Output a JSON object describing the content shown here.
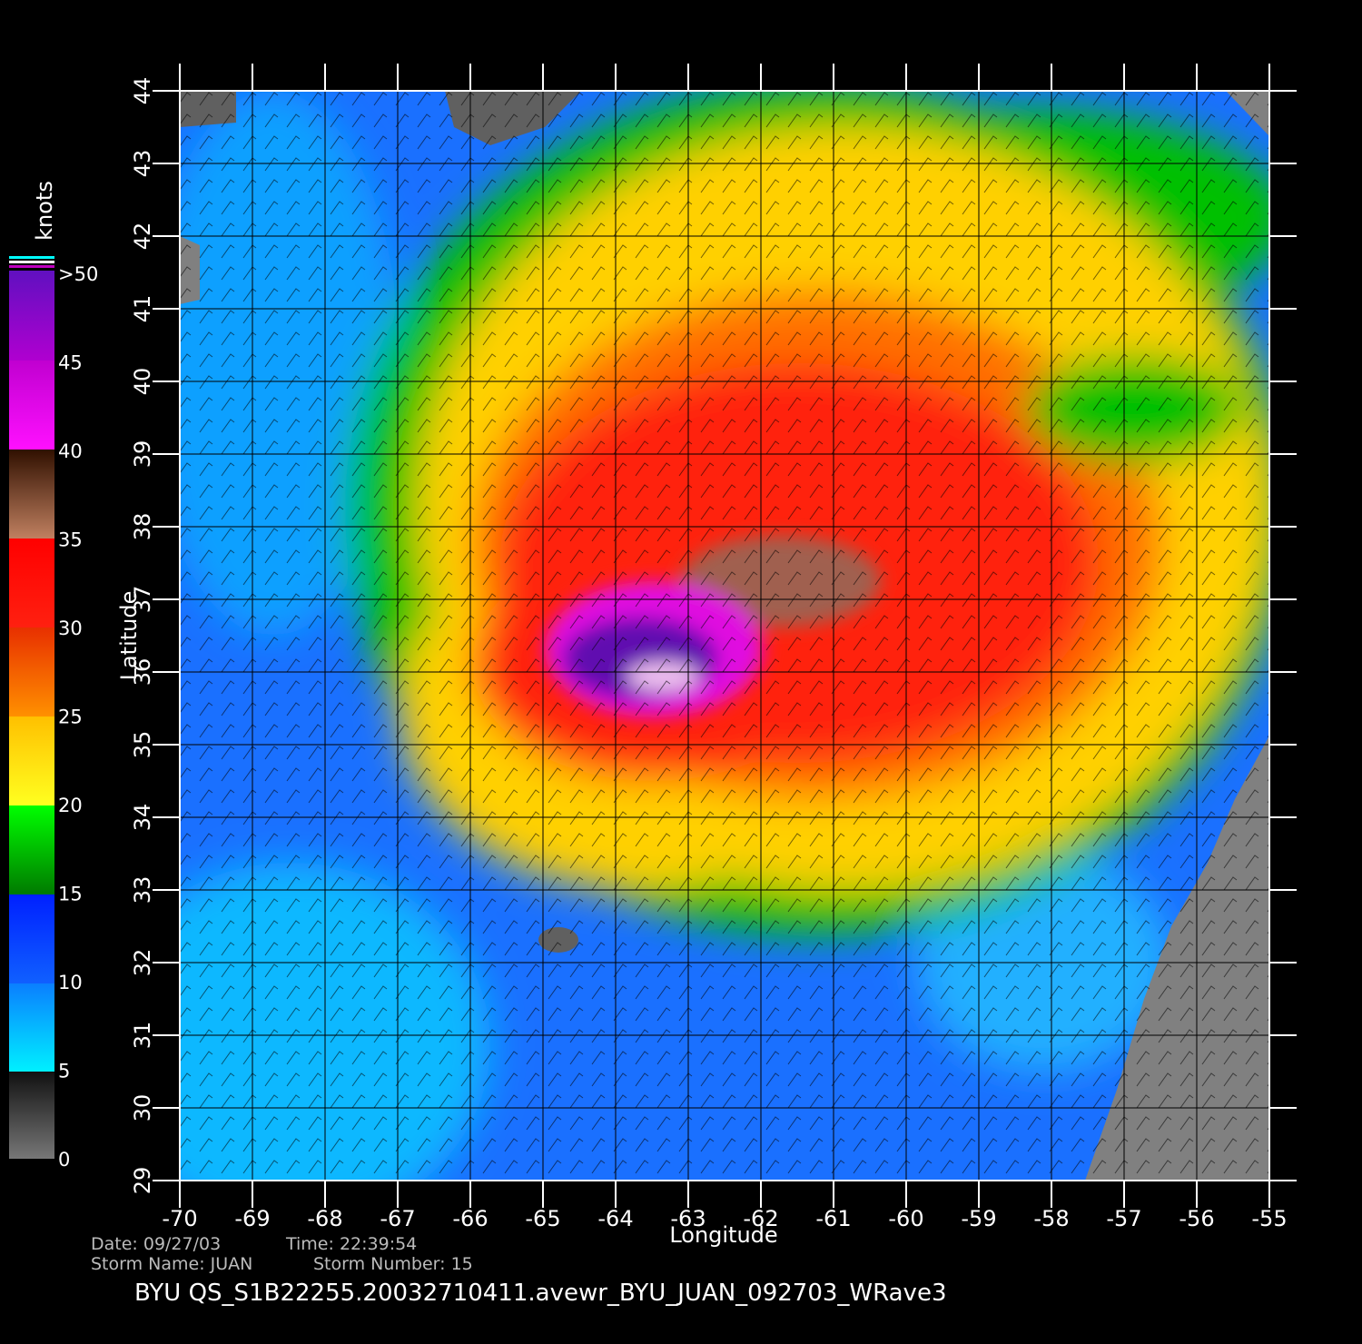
{
  "x_axis": {
    "label": "Longitude",
    "ticks": [
      -70,
      -69,
      -68,
      -67,
      -66,
      -65,
      -64,
      -63,
      -62,
      -61,
      -60,
      -59,
      -58,
      -57,
      -56,
      -55
    ]
  },
  "y_axis": {
    "label": "Latitude",
    "ticks": [
      29,
      30,
      31,
      32,
      33,
      34,
      35,
      36,
      37,
      38,
      39,
      40,
      41,
      42,
      43,
      44
    ]
  },
  "colorbar": {
    "unit": "knots",
    "ticks": [
      0,
      5,
      10,
      15,
      20,
      25,
      30,
      35,
      40,
      45,
      {
        "value": 50,
        "label": ">50"
      }
    ]
  },
  "footer": {
    "date": "Date: 09/27/03",
    "time": "Time: 22:39:54",
    "storm_name": "Storm Name: JUAN",
    "storm_number": "Storm Number: 15",
    "product": "BYU QS_S1B22255.20032710411.avewr_BYU_JUAN_092703_WRave3"
  }
}
